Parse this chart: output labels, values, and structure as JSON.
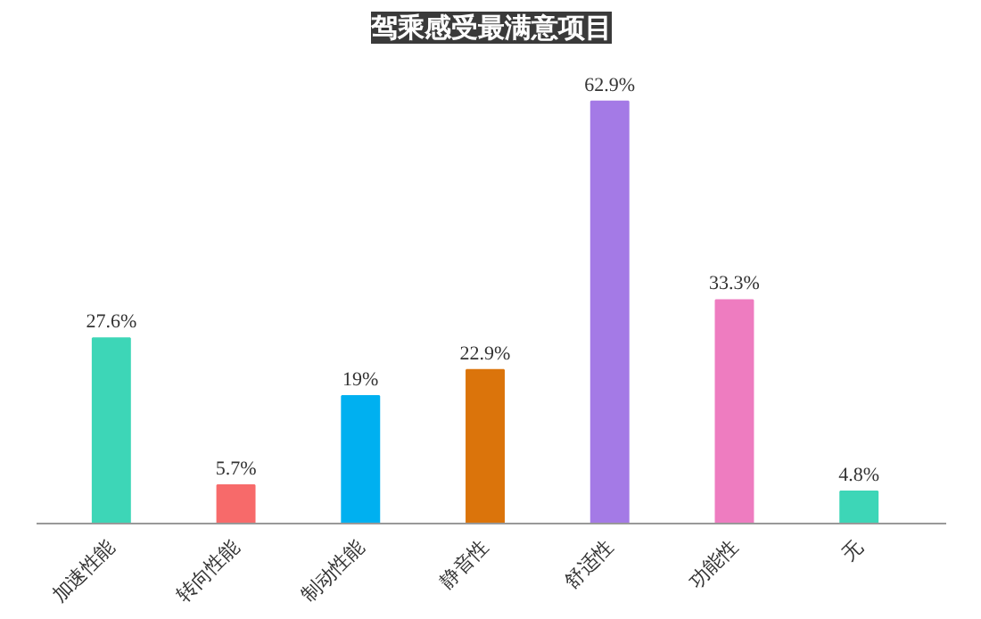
{
  "chart_data": {
    "type": "bar",
    "title": "驾乘感受最满意项目",
    "categories": [
      "加速性能",
      "转向性能",
      "制动性能",
      "静音性",
      "舒适性",
      "功能性",
      "无"
    ],
    "values": [
      27.6,
      5.7,
      19,
      22.9,
      62.9,
      33.3,
      4.8
    ],
    "colors": [
      "#3dd6b7",
      "#f76a6a",
      "#00b0f0",
      "#db740b",
      "#a47ae6",
      "#ee7cc0",
      "#3dd6b7"
    ],
    "value_labels": [
      "27.6%",
      "5.7%",
      "19%",
      "22.9%",
      "62.9%",
      "33.3%",
      "4.8%"
    ],
    "grid": false,
    "tick_labels": "x"
  }
}
